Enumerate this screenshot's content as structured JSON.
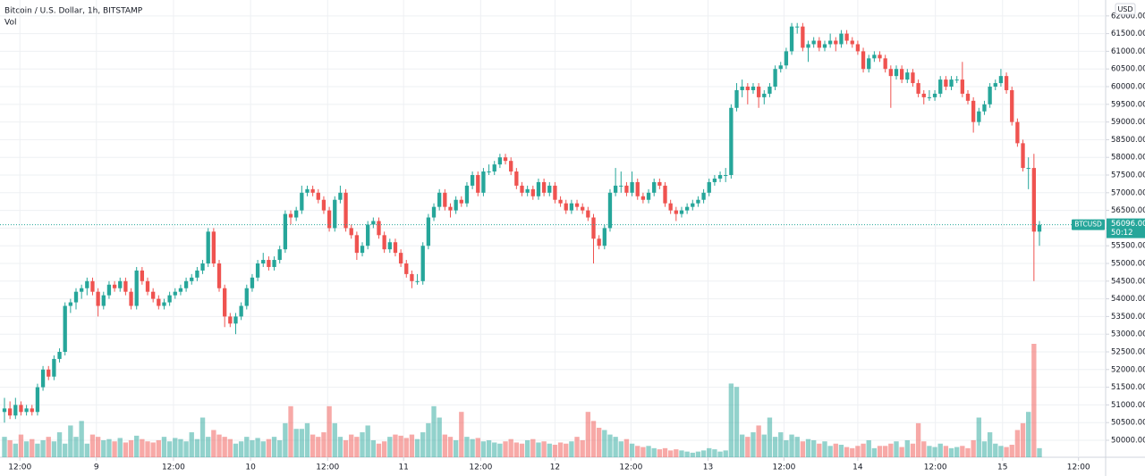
{
  "chart_data": {
    "type": "candlestick",
    "title": "Bitcoin / U.S. Dollar, 1h, BITSTAMP",
    "subtitle": "Vol",
    "currency_label": "USD",
    "symbol_label": "BTCUSD",
    "last_price": 56096,
    "last_price_label": "56096.00",
    "countdown_label": "50:12",
    "up_color": "#26a69a",
    "down_color": "#ef5350",
    "grid": true,
    "ylim": [
      49520,
      62450
    ],
    "yticks": [
      {
        "value": 50000,
        "label": "50000.00"
      },
      {
        "value": 50500,
        "label": "50500.00"
      },
      {
        "value": 51000,
        "label": "51000.00"
      },
      {
        "value": 51500,
        "label": "51500.00"
      },
      {
        "value": 52000,
        "label": "52000.00"
      },
      {
        "value": 52500,
        "label": "52500.00"
      },
      {
        "value": 53000,
        "label": "53000.00"
      },
      {
        "value": 53500,
        "label": "53500.00"
      },
      {
        "value": 54000,
        "label": "54000.00"
      },
      {
        "value": 54500,
        "label": "54500.00"
      },
      {
        "value": 55000,
        "label": "55000.00"
      },
      {
        "value": 55500,
        "label": "55500.00"
      },
      {
        "value": 56000,
        "label": "56000.00"
      },
      {
        "value": 56500,
        "label": "56500.00"
      },
      {
        "value": 57000,
        "label": "57000.00"
      },
      {
        "value": 57500,
        "label": "57500.00"
      },
      {
        "value": 58000,
        "label": "58000.00"
      },
      {
        "value": 58500,
        "label": "58500.00"
      },
      {
        "value": 59000,
        "label": "59000.00"
      },
      {
        "value": 59500,
        "label": "59500.00"
      },
      {
        "value": 60000,
        "label": "60000.00"
      },
      {
        "value": 60500,
        "label": "60500.00"
      },
      {
        "value": 61000,
        "label": "61000.00"
      },
      {
        "value": 61500,
        "label": "61500.00"
      },
      {
        "value": 62000,
        "label": "62000.00"
      }
    ],
    "xticks": [
      {
        "value": 2.8,
        "label": "12:00"
      },
      {
        "value": 16.7,
        "label": "9"
      },
      {
        "value": 30.7,
        "label": "12:00"
      },
      {
        "value": 44.7,
        "label": "10"
      },
      {
        "value": 58.7,
        "label": "12:00"
      },
      {
        "value": 72.5,
        "label": "11"
      },
      {
        "value": 86.5,
        "label": "12:00"
      },
      {
        "value": 100,
        "label": "12"
      },
      {
        "value": 113.8,
        "label": "12:00"
      },
      {
        "value": 127.8,
        "label": "13"
      },
      {
        "value": 141.6,
        "label": "12:00"
      },
      {
        "value": 155,
        "label": "14"
      },
      {
        "value": 169.1,
        "label": "12:00"
      },
      {
        "value": 181.3,
        "label": "15"
      },
      {
        "value": 195.1,
        "label": "12:00"
      }
    ],
    "candles": [
      [
        50800,
        51200,
        50500,
        50900
      ],
      [
        50900,
        51100,
        50600,
        50700
      ],
      [
        50700,
        51200,
        50600,
        51000
      ],
      [
        51000,
        51100,
        50700,
        50800
      ],
      [
        50800,
        51000,
        50700,
        50900
      ],
      [
        50900,
        51000,
        50700,
        50800
      ],
      [
        50800,
        51600,
        50700,
        51500
      ],
      [
        51500,
        52100,
        51400,
        52000
      ],
      [
        52000,
        52100,
        51700,
        51800
      ],
      [
        51800,
        52400,
        51700,
        52300
      ],
      [
        52300,
        52600,
        52200,
        52500
      ],
      [
        52500,
        53900,
        52400,
        53800
      ],
      [
        53800,
        54000,
        53600,
        53900
      ],
      [
        53900,
        54300,
        53700,
        54200
      ],
      [
        54200,
        54400,
        54000,
        54300
      ],
      [
        54300,
        54600,
        54100,
        54500
      ],
      [
        54500,
        54600,
        54100,
        54200
      ],
      [
        54200,
        54300,
        53500,
        53800
      ],
      [
        53800,
        54200,
        53700,
        54100
      ],
      [
        54100,
        54500,
        54000,
        54400
      ],
      [
        54400,
        54500,
        54200,
        54300
      ],
      [
        54300,
        54600,
        54200,
        54500
      ],
      [
        54500,
        54600,
        54100,
        54200
      ],
      [
        54200,
        54300,
        53700,
        53800
      ],
      [
        53800,
        54900,
        53700,
        54800
      ],
      [
        54800,
        54900,
        54400,
        54500
      ],
      [
        54500,
        54600,
        54100,
        54200
      ],
      [
        54200,
        54300,
        53900,
        54000
      ],
      [
        54000,
        54100,
        53700,
        53800
      ],
      [
        53800,
        54000,
        53700,
        53900
      ],
      [
        53900,
        54200,
        53800,
        54100
      ],
      [
        54100,
        54300,
        54000,
        54200
      ],
      [
        54200,
        54400,
        54100,
        54300
      ],
      [
        54300,
        54600,
        54200,
        54500
      ],
      [
        54500,
        54700,
        54400,
        54600
      ],
      [
        54600,
        54900,
        54500,
        54800
      ],
      [
        54800,
        55100,
        54700,
        55000
      ],
      [
        55000,
        56000,
        54900,
        55900
      ],
      [
        55900,
        56000,
        54900,
        55000
      ],
      [
        55000,
        55100,
        54200,
        54300
      ],
      [
        54300,
        54400,
        53200,
        53500
      ],
      [
        53500,
        53600,
        53200,
        53300
      ],
      [
        53300,
        53600,
        53000,
        53500
      ],
      [
        53500,
        53900,
        53400,
        53800
      ],
      [
        53800,
        54400,
        53700,
        54300
      ],
      [
        54300,
        54700,
        54200,
        54600
      ],
      [
        54600,
        55100,
        54500,
        55000
      ],
      [
        55000,
        55300,
        54900,
        55100
      ],
      [
        55100,
        55200,
        54800,
        54900
      ],
      [
        54900,
        55200,
        54800,
        55100
      ],
      [
        55100,
        55500,
        55000,
        55400
      ],
      [
        55400,
        56500,
        55300,
        56400
      ],
      [
        56400,
        56500,
        56100,
        56300
      ],
      [
        56300,
        56600,
        56200,
        56500
      ],
      [
        56500,
        57200,
        56400,
        57000
      ],
      [
        57000,
        57200,
        56900,
        57100
      ],
      [
        57100,
        57200,
        56900,
        57000
      ],
      [
        57000,
        57100,
        56700,
        56800
      ],
      [
        56800,
        56900,
        56400,
        56500
      ],
      [
        56500,
        56600,
        55900,
        56000
      ],
      [
        56000,
        56900,
        55900,
        56800
      ],
      [
        56800,
        57200,
        56700,
        57000
      ],
      [
        57000,
        57100,
        55900,
        56000
      ],
      [
        56000,
        56100,
        55700,
        55800
      ],
      [
        55800,
        55900,
        55100,
        55300
      ],
      [
        55300,
        55600,
        55200,
        55500
      ],
      [
        55500,
        56200,
        55400,
        56100
      ],
      [
        56100,
        56300,
        56000,
        56200
      ],
      [
        56200,
        56300,
        55700,
        55800
      ],
      [
        55800,
        55900,
        55300,
        55400
      ],
      [
        55400,
        55700,
        55300,
        55600
      ],
      [
        55600,
        55700,
        55200,
        55300
      ],
      [
        55300,
        55400,
        54900,
        55000
      ],
      [
        55000,
        55100,
        54600,
        54700
      ],
      [
        54700,
        54800,
        54300,
        54500
      ],
      [
        54500,
        54700,
        54400,
        54500
      ],
      [
        54500,
        55600,
        54400,
        55500
      ],
      [
        55500,
        56400,
        55400,
        56300
      ],
      [
        56300,
        56700,
        56200,
        56600
      ],
      [
        56600,
        57100,
        56500,
        57000
      ],
      [
        57000,
        57100,
        56500,
        56600
      ],
      [
        56600,
        56700,
        56300,
        56500
      ],
      [
        56500,
        56900,
        56400,
        56800
      ],
      [
        56800,
        56900,
        56600,
        56700
      ],
      [
        56700,
        57300,
        56600,
        57200
      ],
      [
        57200,
        57600,
        57100,
        57500
      ],
      [
        57500,
        57600,
        56900,
        57000
      ],
      [
        57000,
        57700,
        56900,
        57600
      ],
      [
        57600,
        57800,
        57500,
        57600
      ],
      [
        57600,
        57900,
        57500,
        57800
      ],
      [
        57800,
        58100,
        57700,
        58000
      ],
      [
        58000,
        58100,
        57800,
        57900
      ],
      [
        57900,
        58000,
        57500,
        57600
      ],
      [
        57600,
        57700,
        57100,
        57200
      ],
      [
        57200,
        57300,
        56900,
        57000
      ],
      [
        57000,
        57200,
        56900,
        57100
      ],
      [
        57100,
        57200,
        56800,
        56900
      ],
      [
        56900,
        57400,
        56800,
        57300
      ],
      [
        57300,
        57400,
        56900,
        57000
      ],
      [
        57000,
        57300,
        56900,
        57200
      ],
      [
        57200,
        57300,
        56700,
        56800
      ],
      [
        56800,
        56900,
        56600,
        56700
      ],
      [
        56700,
        56800,
        56400,
        56500
      ],
      [
        56500,
        56800,
        56400,
        56700
      ],
      [
        56700,
        56800,
        56500,
        56600
      ],
      [
        56600,
        56700,
        56400,
        56500
      ],
      [
        56500,
        56600,
        56200,
        56300
      ],
      [
        56300,
        56400,
        55000,
        55700
      ],
      [
        55700,
        55800,
        55400,
        55500
      ],
      [
        55500,
        56100,
        55400,
        56000
      ],
      [
        56000,
        57100,
        55900,
        57000
      ],
      [
        57000,
        57700,
        56900,
        57200
      ],
      [
        57200,
        57600,
        57000,
        57200
      ],
      [
        57200,
        57300,
        56900,
        57000
      ],
      [
        57000,
        57600,
        56900,
        57300
      ],
      [
        57300,
        57400,
        56800,
        56900
      ],
      [
        56900,
        57000,
        56700,
        56800
      ],
      [
        56800,
        57100,
        56700,
        57000
      ],
      [
        57000,
        57400,
        56900,
        57300
      ],
      [
        57300,
        57400,
        57100,
        57200
      ],
      [
        57200,
        57300,
        56600,
        56700
      ],
      [
        56700,
        56800,
        56400,
        56500
      ],
      [
        56500,
        56600,
        56200,
        56400
      ],
      [
        56400,
        56600,
        56300,
        56500
      ],
      [
        56500,
        56700,
        56400,
        56600
      ],
      [
        56600,
        56800,
        56500,
        56700
      ],
      [
        56700,
        56900,
        56600,
        56800
      ],
      [
        56800,
        57100,
        56700,
        57000
      ],
      [
        57000,
        57400,
        56900,
        57300
      ],
      [
        57300,
        57500,
        57200,
        57400
      ],
      [
        57400,
        57600,
        57300,
        57500
      ],
      [
        57500,
        57700,
        57300,
        57500
      ],
      [
        57500,
        59500,
        57400,
        59400
      ],
      [
        59400,
        60100,
        59300,
        59900
      ],
      [
        59900,
        60200,
        59700,
        60000
      ],
      [
        60000,
        60100,
        59500,
        59900
      ],
      [
        59900,
        60100,
        59800,
        60000
      ],
      [
        60000,
        60100,
        59400,
        59700
      ],
      [
        59700,
        59900,
        59500,
        59800
      ],
      [
        59800,
        60100,
        59700,
        60000
      ],
      [
        60000,
        60600,
        59900,
        60500
      ],
      [
        60500,
        60700,
        60400,
        60600
      ],
      [
        60600,
        61100,
        60500,
        61000
      ],
      [
        61000,
        61800,
        60900,
        61700
      ],
      [
        61700,
        61800,
        61500,
        61700
      ],
      [
        61700,
        61800,
        61000,
        61100
      ],
      [
        61100,
        61300,
        60700,
        61200
      ],
      [
        61200,
        61400,
        61100,
        61300
      ],
      [
        61300,
        61400,
        61000,
        61100
      ],
      [
        61100,
        61300,
        61000,
        61200
      ],
      [
        61200,
        61500,
        61100,
        61300
      ],
      [
        61300,
        61400,
        61000,
        61200
      ],
      [
        61200,
        61600,
        61100,
        61500
      ],
      [
        61500,
        61600,
        61200,
        61300
      ],
      [
        61300,
        61400,
        61100,
        61200
      ],
      [
        61200,
        61300,
        60900,
        61000
      ],
      [
        61000,
        61100,
        60400,
        60500
      ],
      [
        60500,
        60900,
        60400,
        60800
      ],
      [
        60800,
        61000,
        60700,
        60900
      ],
      [
        60900,
        61000,
        60700,
        60800
      ],
      [
        60800,
        60900,
        60400,
        60500
      ],
      [
        60500,
        60600,
        59400,
        60300
      ],
      [
        60300,
        60600,
        60200,
        60500
      ],
      [
        60500,
        60600,
        60100,
        60200
      ],
      [
        60200,
        60500,
        60100,
        60400
      ],
      [
        60400,
        60500,
        60000,
        60100
      ],
      [
        60100,
        60200,
        59700,
        59800
      ],
      [
        59800,
        59900,
        59500,
        59700
      ],
      [
        59700,
        59900,
        59600,
        59700
      ],
      [
        59700,
        59900,
        59600,
        59800
      ],
      [
        59800,
        60300,
        59700,
        60200
      ],
      [
        60200,
        60300,
        59900,
        60000
      ],
      [
        60000,
        60300,
        59900,
        60200
      ],
      [
        60200,
        60300,
        60100,
        60200
      ],
      [
        60200,
        60700,
        59700,
        59800
      ],
      [
        59800,
        59900,
        59500,
        59600
      ],
      [
        59600,
        59700,
        58700,
        59000
      ],
      [
        59000,
        59400,
        58900,
        59300
      ],
      [
        59300,
        59600,
        59200,
        59500
      ],
      [
        59500,
        60100,
        59400,
        60000
      ],
      [
        60000,
        60200,
        59900,
        60100
      ],
      [
        60100,
        60500,
        60000,
        60300
      ],
      [
        60300,
        60400,
        59800,
        59900
      ],
      [
        59900,
        60000,
        58900,
        59000
      ],
      [
        59000,
        59100,
        58300,
        58400
      ],
      [
        58400,
        58500,
        57600,
        57700
      ],
      [
        57700,
        58000,
        57100,
        57700
      ],
      [
        57700,
        58100,
        54500,
        55900
      ],
      [
        55900,
        56200,
        55500,
        56096
      ]
    ],
    "volumes": [
      18,
      15,
      12,
      20,
      14,
      16,
      12,
      15,
      18,
      14,
      22,
      12,
      28,
      18,
      32,
      12,
      20,
      18,
      15,
      16,
      14,
      17,
      13,
      15,
      19,
      16,
      14,
      13,
      15,
      18,
      14,
      17,
      16,
      14,
      22,
      16,
      35,
      18,
      24,
      20,
      18,
      16,
      12,
      14,
      18,
      15,
      17,
      14,
      16,
      18,
      15,
      30,
      45,
      25,
      25,
      30,
      20,
      18,
      22,
      45,
      30,
      18,
      15,
      20,
      18,
      22,
      28,
      15,
      12,
      14,
      18,
      20,
      19,
      17,
      20,
      16,
      22,
      30,
      45,
      35,
      20,
      18,
      15,
      40,
      18,
      16,
      17,
      14,
      15,
      13,
      12,
      14,
      16,
      13,
      12,
      15,
      16,
      13,
      14,
      12,
      11,
      13,
      12,
      14,
      18,
      15,
      40,
      32,
      26,
      24,
      20,
      18,
      14,
      16,
      12,
      10,
      9,
      10,
      8,
      7,
      8,
      6,
      7,
      6,
      5,
      4,
      5,
      6,
      8,
      7,
      5,
      6,
      65,
      62,
      20,
      18,
      22,
      28,
      20,
      35,
      18,
      22,
      15,
      20,
      18,
      14,
      16,
      15,
      12,
      14,
      10,
      12,
      11,
      9,
      8,
      10,
      12,
      15,
      8,
      10,
      10,
      12,
      14,
      9,
      15,
      12,
      30,
      14,
      10,
      9,
      12,
      10,
      8,
      9,
      10,
      8,
      15,
      35,
      14,
      22,
      12,
      10,
      9,
      11,
      24,
      30,
      40,
      100,
      8
    ]
  }
}
